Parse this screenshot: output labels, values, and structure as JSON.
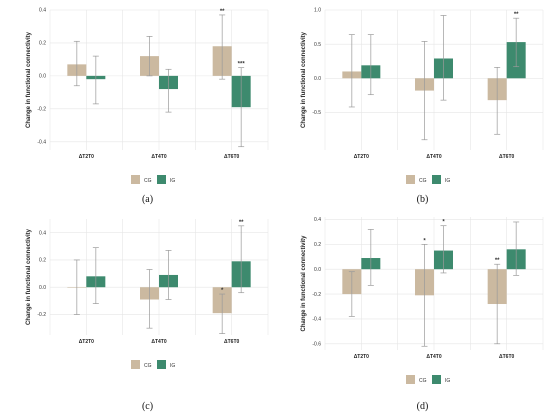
{
  "colors": {
    "CG": "#cbb9a0",
    "IG": "#3d8a6e",
    "grid": "#e6e6e6",
    "whisker": "#9a9a9a"
  },
  "chart_data": [
    {
      "type": "bar",
      "caption": "(a)",
      "ylabel": "Change in functional connectivity",
      "ylim": [
        -0.45,
        0.4
      ],
      "yticks": [
        0.4,
        0.2,
        0.0,
        -0.2,
        -0.4
      ],
      "ytick_labels": [
        "0.4",
        "0.2",
        "0.0",
        "-0.2",
        "-0.4"
      ],
      "categories": [
        "ΔT2T0",
        "ΔT4T0",
        "ΔT6T0"
      ],
      "series": [
        {
          "name": "CG",
          "values": [
            0.07,
            0.12,
            0.18
          ],
          "ci_low": [
            -0.06,
            0.0,
            -0.02
          ],
          "ci_high": [
            0.21,
            0.24,
            0.37
          ],
          "sig": [
            "",
            "",
            "**"
          ]
        },
        {
          "name": "IG",
          "values": [
            -0.02,
            -0.08,
            -0.19
          ],
          "ci_low": [
            -0.17,
            -0.22,
            -0.43
          ],
          "ci_high": [
            0.12,
            0.04,
            0.05
          ],
          "sig": [
            "",
            "",
            "***"
          ]
        }
      ],
      "grid": true,
      "legend": "bottom-center"
    },
    {
      "type": "bar",
      "caption": "(b)",
      "ylabel": "Change in functional connectivity",
      "ylim": [
        -1.05,
        1.0
      ],
      "yticks": [
        1.0,
        0.5,
        0.0,
        -0.5
      ],
      "ytick_labels": [
        "1.0",
        "0.5",
        "0.0",
        "-0.5"
      ],
      "categories": [
        "ΔT2T0",
        "ΔT4T0",
        "ΔT6T0"
      ],
      "series": [
        {
          "name": "CG",
          "values": [
            0.1,
            -0.18,
            -0.32
          ],
          "ci_low": [
            -0.42,
            -0.9,
            -0.82
          ],
          "ci_high": [
            0.64,
            0.54,
            0.16
          ],
          "sig": [
            "",
            "",
            ""
          ]
        },
        {
          "name": "IG",
          "values": [
            0.19,
            0.29,
            0.53
          ],
          "ci_low": [
            -0.24,
            -0.32,
            0.17
          ],
          "ci_high": [
            0.64,
            0.92,
            0.88
          ],
          "sig": [
            "",
            "",
            "**"
          ]
        }
      ],
      "grid": true,
      "legend": "bottom-center"
    },
    {
      "type": "bar",
      "caption": "(c)",
      "ylabel": "Change in functional connectivity",
      "ylim": [
        -0.35,
        0.5
      ],
      "yticks": [
        0.4,
        0.2,
        0.0,
        -0.2
      ],
      "ytick_labels": [
        "0.4",
        "0.2",
        "0.0",
        "-0.2"
      ],
      "categories": [
        "ΔT2T0",
        "ΔT4T0",
        "ΔT6T0"
      ],
      "series": [
        {
          "name": "CG",
          "values": [
            0.0,
            -0.09,
            -0.19
          ],
          "ci_low": [
            -0.2,
            -0.3,
            -0.34
          ],
          "ci_high": [
            0.2,
            0.13,
            -0.05
          ],
          "sig": [
            "",
            "",
            "*"
          ]
        },
        {
          "name": "IG",
          "values": [
            0.08,
            0.09,
            0.19
          ],
          "ci_low": [
            -0.12,
            -0.09,
            -0.04
          ],
          "ci_high": [
            0.29,
            0.27,
            0.45
          ],
          "sig": [
            "",
            "",
            "**"
          ]
        }
      ],
      "grid": true,
      "legend": "bottom-center"
    },
    {
      "type": "bar",
      "caption": "(d)",
      "ylabel": "Change in functional connectivity",
      "ylim": [
        -0.65,
        0.42
      ],
      "yticks": [
        0.4,
        0.2,
        0.0,
        -0.2,
        -0.4,
        -0.6
      ],
      "ytick_labels": [
        "0.4",
        "0.2",
        "0.0",
        "-0.2",
        "-0.4",
        "-0.6"
      ],
      "categories": [
        "ΔT2T0",
        "ΔT4T0",
        "ΔT6T0"
      ],
      "series": [
        {
          "name": "CG",
          "values": [
            -0.2,
            -0.21,
            -0.28
          ],
          "ci_low": [
            -0.38,
            -0.62,
            -0.6
          ],
          "ci_high": [
            -0.02,
            0.2,
            0.04
          ],
          "sig": [
            "",
            "*",
            "**"
          ]
        },
        {
          "name": "IG",
          "values": [
            0.09,
            0.15,
            0.16
          ],
          "ci_low": [
            -0.13,
            -0.03,
            -0.05
          ],
          "ci_high": [
            0.32,
            0.35,
            0.38
          ],
          "sig": [
            "",
            "*",
            ""
          ]
        }
      ],
      "grid": true,
      "legend": "bottom-center"
    }
  ]
}
